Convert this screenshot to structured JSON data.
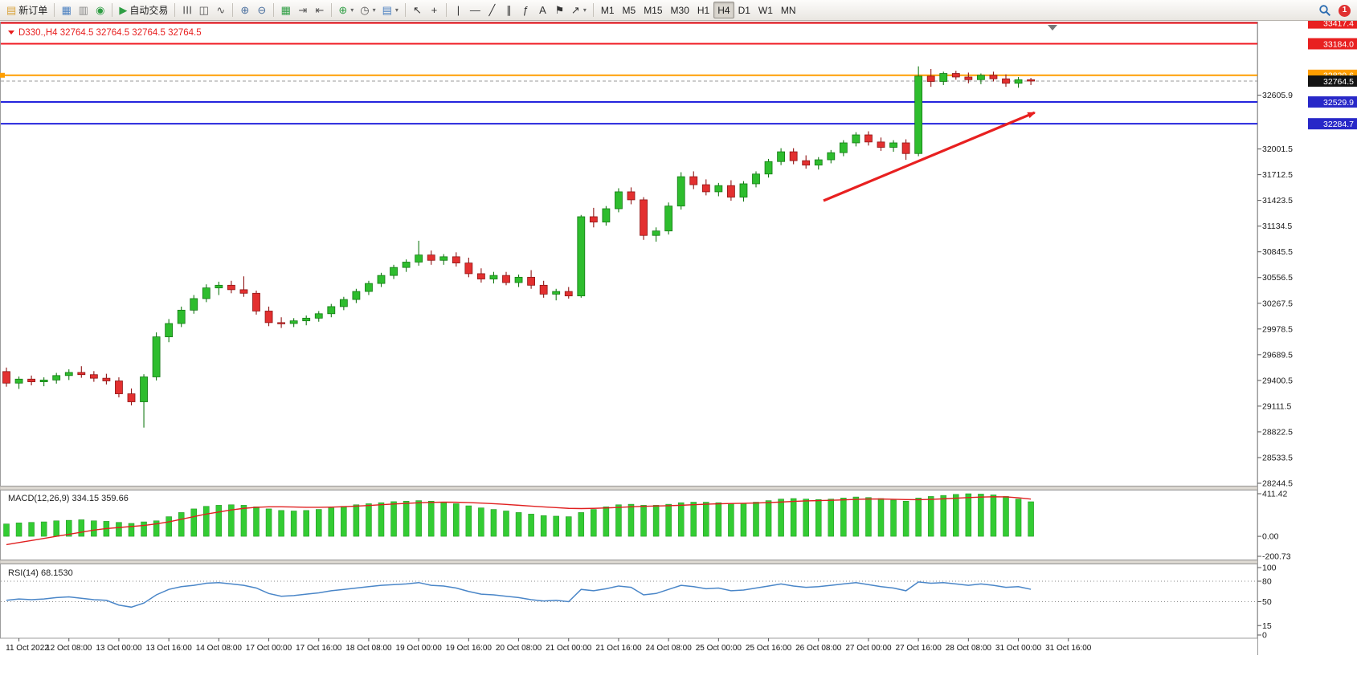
{
  "toolbar": {
    "notification_count": "1",
    "groups": [
      {
        "name": "trade",
        "items": [
          {
            "name": "new-order-button",
            "icon": "new-order-icon",
            "glyph": "▤",
            "glyph_color": "#d9a33c",
            "label": "新订单"
          }
        ]
      },
      {
        "name": "windows",
        "items": [
          {
            "name": "new-chart-button",
            "icon": "new-chart-icon",
            "glyph": "▦",
            "glyph_color": "#4a7fc0"
          },
          {
            "name": "profiles-button",
            "icon": "profiles-icon",
            "glyph": "▥",
            "glyph_color": "#888888"
          },
          {
            "name": "alerts-button",
            "icon": "sound-icon",
            "glyph": "◉",
            "glyph_color": "#2f9e44"
          }
        ]
      },
      {
        "name": "autotrading",
        "items": [
          {
            "name": "autotrading-button",
            "icon": "play-icon",
            "glyph": "▶",
            "glyph_color": "#2f9e44",
            "label": "自动交易"
          }
        ]
      },
      {
        "name": "chart-types",
        "items": [
          {
            "name": "bar-chart-button",
            "icon": "bar-chart-icon",
            "glyph": "☰",
            "glyph_color": "#555555",
            "rotate": 90
          },
          {
            "name": "candlestick-button",
            "icon": "candlestick-icon",
            "glyph": "◫",
            "glyph_color": "#555555"
          },
          {
            "name": "line-chart-button",
            "icon": "line-chart-icon",
            "glyph": "∿",
            "glyph_color": "#555555"
          }
        ]
      },
      {
        "name": "zoom",
        "items": [
          {
            "name": "zoom-in-button",
            "icon": "zoom-in-icon",
            "glyph": "⊕",
            "glyph_color": "#4a6f9e"
          },
          {
            "name": "zoom-out-button",
            "icon": "zoom-out-icon",
            "glyph": "⊖",
            "glyph_color": "#4a6f9e"
          }
        ]
      },
      {
        "name": "layout",
        "items": [
          {
            "name": "tile-windows-button",
            "icon": "tile-windows-icon",
            "glyph": "▦",
            "glyph_color": "#2f9e44"
          },
          {
            "name": "auto-scroll-button",
            "icon": "auto-scroll-icon",
            "glyph": "⇥",
            "glyph_color": "#555555"
          },
          {
            "name": "chart-shift-button",
            "icon": "chart-shift-icon",
            "glyph": "⇤",
            "glyph_color": "#555555"
          }
        ]
      },
      {
        "name": "indicators",
        "items": [
          {
            "name": "add-indicator-button",
            "icon": "indicator-plus-icon",
            "glyph": "⊕",
            "glyph_color": "#2f9e44",
            "dropdown": true
          },
          {
            "name": "period-button",
            "icon": "clock-icon",
            "glyph": "◷",
            "glyph_color": "#555555",
            "dropdown": true
          },
          {
            "name": "template-button",
            "icon": "template-icon",
            "glyph": "▤",
            "glyph_color": "#4a7fc0",
            "dropdown": true
          }
        ]
      },
      {
        "name": "cursor-tools",
        "items": [
          {
            "name": "cursor-button",
            "icon": "cursor-icon",
            "glyph": "↖",
            "glyph_color": "#333333"
          },
          {
            "name": "crosshair-button",
            "icon": "crosshair-icon",
            "glyph": "+",
            "glyph_color": "#333333"
          }
        ]
      },
      {
        "name": "draw-tools",
        "items": [
          {
            "name": "vertical-line-button",
            "icon": "vertical-line-icon",
            "glyph": "|",
            "glyph_color": "#333333"
          },
          {
            "name": "horizontal-line-button",
            "icon": "horizontal-line-icon",
            "glyph": "—",
            "glyph_color": "#333333"
          },
          {
            "name": "trendline-button",
            "icon": "trendline-icon",
            "glyph": "╱",
            "glyph_color": "#333333"
          },
          {
            "name": "channel-button",
            "icon": "channel-icon",
            "glyph": "∥",
            "glyph_color": "#333333"
          },
          {
            "name": "fibonacci-button",
            "icon": "fibonacci-icon",
            "glyph": "ƒ",
            "glyph_color": "#333333"
          },
          {
            "name": "text-button",
            "icon": "text-icon",
            "glyph": "A",
            "glyph_color": "#333333"
          },
          {
            "name": "label-button",
            "icon": "flag-icon",
            "glyph": "⚑",
            "glyph_color": "#333333"
          },
          {
            "name": "arrows-button",
            "icon": "arrow-icon",
            "glyph": "↗",
            "glyph_color": "#333333",
            "dropdown": true
          }
        ]
      },
      {
        "name": "timeframes",
        "items": [
          {
            "name": "tf-m1-button",
            "label": "M1"
          },
          {
            "name": "tf-m5-button",
            "label": "M5"
          },
          {
            "name": "tf-m15-button",
            "label": "M15"
          },
          {
            "name": "tf-m30-button",
            "label": "M30"
          },
          {
            "name": "tf-h1-button",
            "label": "H1"
          },
          {
            "name": "tf-h4-button",
            "label": "H4",
            "active": true
          },
          {
            "name": "tf-d1-button",
            "label": "D1"
          },
          {
            "name": "tf-w1-button",
            "label": "W1"
          },
          {
            "name": "tf-mn-button",
            "label": "MN"
          }
        ]
      }
    ]
  },
  "chart_data": {
    "type": "candlestick",
    "header": {
      "symbol": "D330.,H4",
      "open": "32764.5",
      "high": "32764.5",
      "low": "32764.5",
      "close": "32764.5"
    },
    "colors": {
      "up": "#2ebd2e",
      "up_dark": "#157a15",
      "down": "#e33030",
      "down_dark": "#8f1515",
      "macd_hist": "#33cc33",
      "macd_hist_dark": "#1f8f1f",
      "macd_signal": "#e02020",
      "rsi_line": "#4a86c8",
      "header_text": "#e82020"
    },
    "price_lines": [
      {
        "name": "resistance-line-1",
        "price": 33417.4,
        "color": "#f01820",
        "width": 2,
        "tag_bg": "#e82020"
      },
      {
        "name": "resistance-line-2",
        "price": 33184.0,
        "color": "#f01820",
        "width": 2,
        "tag_bg": "#e82020"
      },
      {
        "name": "orange-line",
        "price": 32829.6,
        "color": "#ff9e00",
        "width": 2,
        "tag_bg": "#ff9e00",
        "left_marker": true
      },
      {
        "name": "support-line-1",
        "price": 32529.9,
        "color": "#2424dd",
        "width": 2,
        "tag_bg": "#2828c8"
      },
      {
        "name": "support-line-2",
        "price": 32284.7,
        "color": "#2424dd",
        "width": 2,
        "tag_bg": "#2828c8"
      }
    ],
    "current_price": {
      "value": 32764.5,
      "tag_bg": "#141414",
      "line_color": "#999999"
    },
    "y_axis_ticks": [
      32605.9,
      32001.5,
      31712.5,
      31423.5,
      31134.5,
      30845.5,
      30556.5,
      30267.5,
      29978.5,
      29689.5,
      29400.5,
      29111.5,
      28822.5,
      28533.5,
      28244.5
    ],
    "x_axis_labels": [
      {
        "i": 1,
        "label": "11 Oct 2022"
      },
      {
        "i": 5,
        "label": "12 Oct 08:00"
      },
      {
        "i": 9,
        "label": "13 Oct 00:00"
      },
      {
        "i": 13,
        "label": "13 Oct 16:00"
      },
      {
        "i": 17,
        "label": "14 Oct 08:00"
      },
      {
        "i": 21,
        "label": "17 Oct 00:00"
      },
      {
        "i": 25,
        "label": "17 Oct 16:00"
      },
      {
        "i": 29,
        "label": "18 Oct 08:00"
      },
      {
        "i": 33,
        "label": "19 Oct 00:00"
      },
      {
        "i": 37,
        "label": "19 Oct 16:00"
      },
      {
        "i": 41,
        "label": "20 Oct 08:00"
      },
      {
        "i": 45,
        "label": "21 Oct 00:00"
      },
      {
        "i": 49,
        "label": "21 Oct 16:00"
      },
      {
        "i": 53,
        "label": "24 Oct 08:00"
      },
      {
        "i": 57,
        "label": "25 Oct 00:00"
      },
      {
        "i": 61,
        "label": "25 Oct 16:00"
      },
      {
        "i": 65,
        "label": "26 Oct 08:00"
      },
      {
        "i": 69,
        "label": "27 Oct 00:00"
      },
      {
        "i": 73,
        "label": "27 Oct 16:00"
      },
      {
        "i": 77,
        "label": "28 Oct 08:00"
      },
      {
        "i": 81,
        "label": "31 Oct 00:00"
      },
      {
        "i": 85,
        "label": "31 Oct 16:00"
      }
    ],
    "candles": [
      [
        29500,
        29545,
        29330,
        29370
      ],
      [
        29370,
        29445,
        29305,
        29415
      ],
      [
        29415,
        29455,
        29345,
        29385
      ],
      [
        29385,
        29435,
        29335,
        29405
      ],
      [
        29405,
        29485,
        29365,
        29455
      ],
      [
        29455,
        29525,
        29405,
        29490
      ],
      [
        29490,
        29560,
        29430,
        29465
      ],
      [
        29465,
        29505,
        29385,
        29425
      ],
      [
        29425,
        29475,
        29355,
        29395
      ],
      [
        29395,
        29435,
        29210,
        29250
      ],
      [
        29250,
        29310,
        29120,
        29160
      ],
      [
        29160,
        29470,
        28870,
        29440
      ],
      [
        29440,
        29940,
        29400,
        29890
      ],
      [
        29890,
        30090,
        29830,
        30040
      ],
      [
        30040,
        30230,
        30000,
        30190
      ],
      [
        30190,
        30360,
        30150,
        30320
      ],
      [
        30320,
        30480,
        30280,
        30440
      ],
      [
        30440,
        30510,
        30360,
        30470
      ],
      [
        30470,
        30520,
        30380,
        30420
      ],
      [
        30420,
        30570,
        30340,
        30380
      ],
      [
        30380,
        30410,
        30140,
        30180
      ],
      [
        30180,
        30230,
        30010,
        30050
      ],
      [
        30050,
        30110,
        29990,
        30040
      ],
      [
        30040,
        30100,
        30000,
        30070
      ],
      [
        30070,
        30130,
        30020,
        30100
      ],
      [
        30100,
        30180,
        30060,
        30150
      ],
      [
        30150,
        30260,
        30110,
        30230
      ],
      [
        30230,
        30340,
        30190,
        30310
      ],
      [
        30310,
        30430,
        30270,
        30400
      ],
      [
        30400,
        30520,
        30360,
        30490
      ],
      [
        30490,
        30610,
        30450,
        30580
      ],
      [
        30580,
        30700,
        30540,
        30670
      ],
      [
        30670,
        30760,
        30620,
        30730
      ],
      [
        30730,
        30970,
        30690,
        30810
      ],
      [
        30810,
        30860,
        30700,
        30750
      ],
      [
        30750,
        30820,
        30700,
        30790
      ],
      [
        30790,
        30840,
        30680,
        30720
      ],
      [
        30720,
        30780,
        30560,
        30600
      ],
      [
        30600,
        30660,
        30500,
        30540
      ],
      [
        30540,
        30620,
        30490,
        30580
      ],
      [
        30580,
        30620,
        30470,
        30500
      ],
      [
        30500,
        30590,
        30450,
        30560
      ],
      [
        30560,
        30640,
        30430,
        30470
      ],
      [
        30470,
        30520,
        30330,
        30370
      ],
      [
        30370,
        30430,
        30300,
        30400
      ],
      [
        30400,
        30450,
        30320,
        30350
      ],
      [
        30350,
        31260,
        30330,
        31240
      ],
      [
        31240,
        31340,
        31120,
        31180
      ],
      [
        31180,
        31360,
        31140,
        31330
      ],
      [
        31330,
        31560,
        31290,
        31520
      ],
      [
        31520,
        31570,
        31380,
        31430
      ],
      [
        31430,
        31460,
        30980,
        31030
      ],
      [
        31030,
        31120,
        30960,
        31080
      ],
      [
        31080,
        31400,
        31040,
        31360
      ],
      [
        31360,
        31740,
        31320,
        31690
      ],
      [
        31690,
        31750,
        31550,
        31600
      ],
      [
        31600,
        31660,
        31480,
        31520
      ],
      [
        31520,
        31620,
        31470,
        31590
      ],
      [
        31590,
        31650,
        31420,
        31460
      ],
      [
        31460,
        31640,
        31410,
        31610
      ],
      [
        31610,
        31750,
        31570,
        31720
      ],
      [
        31720,
        31890,
        31680,
        31860
      ],
      [
        31860,
        32010,
        31820,
        31970
      ],
      [
        31970,
        32010,
        31830,
        31870
      ],
      [
        31870,
        31930,
        31780,
        31820
      ],
      [
        31820,
        31910,
        31770,
        31880
      ],
      [
        31880,
        31990,
        31840,
        31960
      ],
      [
        31960,
        32100,
        31920,
        32070
      ],
      [
        32070,
        32190,
        32030,
        32160
      ],
      [
        32160,
        32200,
        32040,
        32080
      ],
      [
        32080,
        32130,
        31980,
        32020
      ],
      [
        32020,
        32100,
        31970,
        32070
      ],
      [
        32070,
        32110,
        31880,
        31950
      ],
      [
        31950,
        32930,
        31920,
        32820
      ],
      [
        32820,
        32900,
        32700,
        32760
      ],
      [
        32760,
        32870,
        32720,
        32850
      ],
      [
        32850,
        32880,
        32780,
        32810
      ],
      [
        32810,
        32860,
        32740,
        32780
      ],
      [
        32780,
        32850,
        32730,
        32830
      ],
      [
        32830,
        32870,
        32760,
        32790
      ],
      [
        32790,
        32840,
        32700,
        32740
      ],
      [
        32740,
        32810,
        32690,
        32780
      ],
      [
        32780,
        32800,
        32720,
        32764.5
      ]
    ],
    "arrow_annotation": {
      "from_index": 65.4,
      "from_price": 31420,
      "to_index": 82.3,
      "to_price": 32410,
      "color": "#e82020"
    },
    "macd": {
      "label": "MACD(12,26,9)",
      "value": "334.15",
      "signal": "359.66",
      "ticks": [
        {
          "v": 411.42,
          "label": "411.42"
        },
        {
          "v": 0,
          "label": "0.00"
        },
        {
          "v": -200.73,
          "label": "-200.73"
        }
      ],
      "histogram": [
        120,
        130,
        135,
        140,
        150,
        155,
        160,
        150,
        145,
        135,
        125,
        140,
        150,
        190,
        230,
        265,
        290,
        300,
        305,
        300,
        285,
        265,
        250,
        245,
        250,
        260,
        275,
        290,
        305,
        315,
        325,
        335,
        340,
        345,
        340,
        330,
        315,
        295,
        275,
        260,
        245,
        230,
        215,
        200,
        195,
        190,
        230,
        260,
        285,
        305,
        310,
        300,
        300,
        310,
        325,
        330,
        330,
        325,
        315,
        320,
        330,
        345,
        360,
        365,
        360,
        355,
        360,
        370,
        380,
        375,
        365,
        350,
        340,
        370,
        385,
        395,
        405,
        411.42,
        408,
        400,
        385,
        360,
        334.15
      ],
      "signal_line": [
        -80,
        -60,
        -40,
        -20,
        0,
        20,
        40,
        60,
        75,
        85,
        95,
        105,
        120,
        140,
        165,
        190,
        215,
        235,
        255,
        270,
        280,
        285,
        285,
        283,
        280,
        280,
        282,
        286,
        292,
        298,
        305,
        312,
        318,
        324,
        328,
        330,
        329,
        326,
        321,
        315,
        308,
        300,
        292,
        284,
        277,
        270,
        268,
        270,
        274,
        279,
        285,
        290,
        293,
        296,
        300,
        305,
        310,
        314,
        317,
        319,
        322,
        326,
        331,
        337,
        342,
        345,
        348,
        352,
        357,
        360,
        360,
        358,
        355,
        354,
        357,
        362,
        368,
        374,
        379,
        382,
        381,
        372,
        359.66
      ]
    },
    "rsi": {
      "label": "RSI(14)",
      "value": "68.1530",
      "ticks": [
        100,
        80,
        50,
        15,
        0
      ],
      "levels": [
        80,
        50
      ],
      "values": [
        52,
        54,
        53,
        54,
        56,
        57,
        55,
        53,
        52,
        45,
        42,
        48,
        60,
        68,
        72,
        74,
        77,
        78,
        76,
        74,
        70,
        62,
        58,
        59,
        61,
        63,
        66,
        68,
        70,
        72,
        74,
        75,
        76,
        78,
        74,
        73,
        70,
        65,
        61,
        60,
        58,
        56,
        53,
        51,
        52,
        50,
        68,
        66,
        69,
        73,
        71,
        60,
        62,
        68,
        74,
        72,
        69,
        70,
        66,
        67,
        70,
        73,
        76,
        73,
        71,
        72,
        74,
        76,
        78,
        75,
        72,
        70,
        66,
        79,
        77,
        78,
        76,
        74,
        76,
        74,
        71,
        72,
        68.15
      ]
    }
  }
}
